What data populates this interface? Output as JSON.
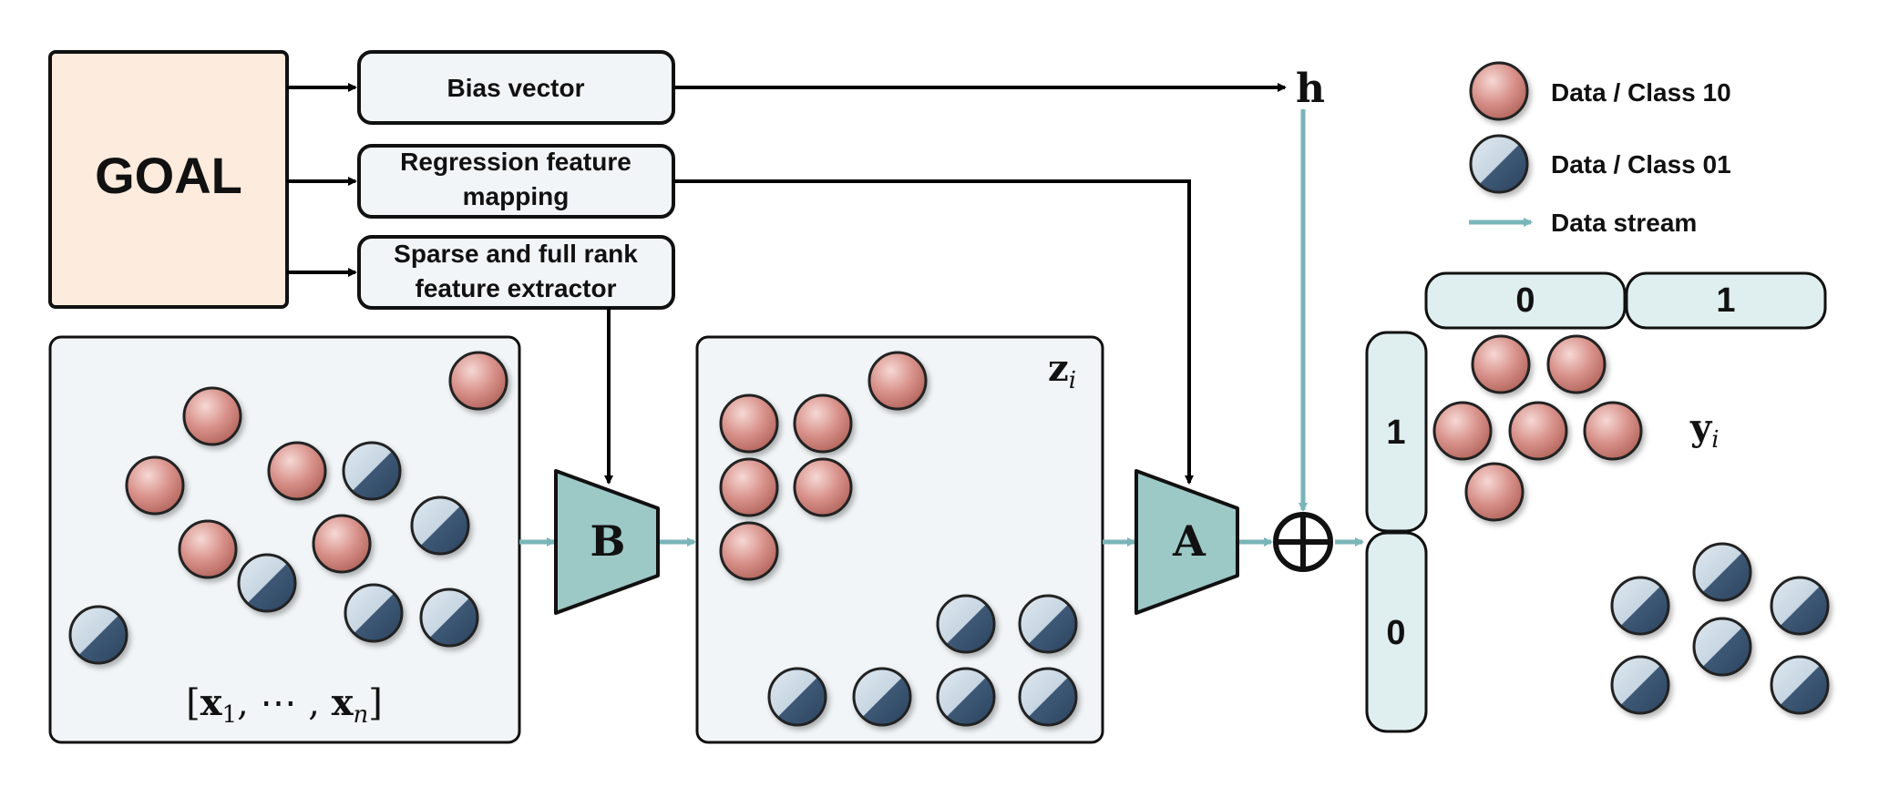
{
  "goal": {
    "label": "GOAL"
  },
  "modules": [
    {
      "label_lines": [
        "Bias vector"
      ]
    },
    {
      "label_lines": [
        "Regression feature",
        "mapping"
      ]
    },
    {
      "label_lines": [
        "Sparse and full rank",
        "feature extractor"
      ]
    }
  ],
  "blocks": {
    "b": "B",
    "a": "A"
  },
  "math": {
    "h": "h",
    "z_main": "z",
    "z_sub": "i",
    "y_main": "y",
    "y_sub": "i",
    "x_open": "[",
    "x1": "x",
    "x1_sub": "1",
    "x_sep": ", ⋯ , ",
    "xn": "x",
    "xn_sub": "n",
    "x_close": "]"
  },
  "legend": {
    "class10": "Data / Class 10",
    "class01": "Data / Class 01",
    "stream": "Data stream"
  },
  "output_headers": {
    "col0": "0",
    "col1": "1",
    "row1": "1",
    "row0": "0"
  },
  "colors": {
    "red_ball": "#d9938c",
    "blue_ball": "#3f5a78",
    "panel_fill": "#f1f5f7",
    "block_fill": "#9cc8c6",
    "stream": "#7ab5b8",
    "goal_fill": "#fdebdd",
    "header_fill": "#dfeeee"
  }
}
